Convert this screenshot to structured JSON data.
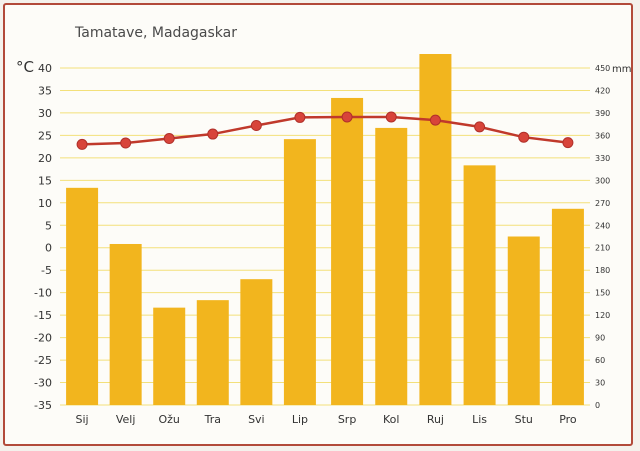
{
  "chart_data": {
    "type": "bar",
    "title": "Tamatave, Madagaskar",
    "categories": [
      "Sij",
      "Velj",
      "Ožu",
      "Tra",
      "Svi",
      "Lip",
      "Srp",
      "Kol",
      "Ruj",
      "Lis",
      "Stu",
      "Pro"
    ],
    "y_left": {
      "unit": "°C",
      "range": [
        -35,
        40
      ],
      "ticks": [
        40,
        35,
        30,
        25,
        20,
        15,
        10,
        5,
        0,
        -5,
        -10,
        -15,
        -20,
        -25,
        -30,
        -35
      ]
    },
    "y_right": {
      "unit": "mm",
      "range": [
        0,
        450
      ],
      "ticks": [
        450,
        420,
        390,
        360,
        330,
        300,
        270,
        240,
        210,
        180,
        150,
        120,
        90,
        60,
        30,
        0
      ]
    },
    "grid": true,
    "series": [
      {
        "kind": "bar",
        "axis": "right",
        "color": "#f2b51e",
        "values": [
          290,
          215,
          130,
          140,
          168,
          355,
          410,
          370,
          470,
          320,
          225,
          262
        ]
      },
      {
        "kind": "line",
        "axis": "left",
        "color": "#c0392b",
        "values": [
          23,
          23.3,
          24.3,
          25.3,
          27.2,
          29,
          29.1,
          29.1,
          28.4,
          26.9,
          24.6,
          23.4
        ]
      }
    ]
  }
}
